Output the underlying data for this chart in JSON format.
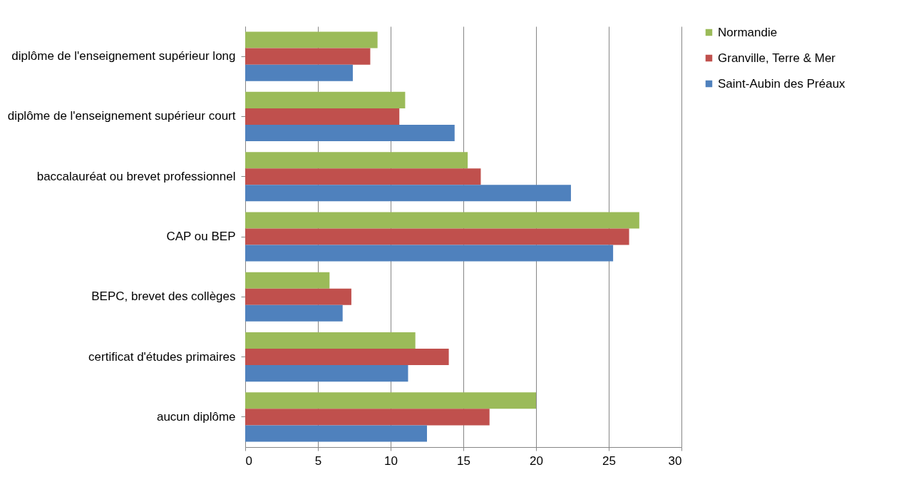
{
  "chart_data": {
    "type": "bar",
    "orientation": "horizontal",
    "categories": [
      "diplôme de l'enseignement supérieur long",
      "diplôme de l'enseignement supérieur court",
      "baccalauréat ou brevet professionnel",
      "CAP ou BEP",
      "BEPC, brevet des collèges",
      "certificat d'études primaires",
      "aucun diplôme"
    ],
    "series": [
      {
        "name": "Normandie",
        "color": "#9bbb59",
        "values": [
          9.1,
          11.0,
          15.3,
          27.1,
          5.8,
          11.7,
          20.0
        ]
      },
      {
        "name": "Granville, Terre & Mer",
        "color": "#c0504d",
        "values": [
          8.6,
          10.6,
          16.2,
          26.4,
          7.3,
          14.0,
          16.8
        ]
      },
      {
        "name": "Saint-Aubin des Préaux",
        "color": "#4f81bd",
        "values": [
          7.4,
          14.4,
          22.4,
          25.3,
          6.7,
          11.2,
          12.5
        ]
      }
    ],
    "xlim": [
      0,
      30
    ],
    "xticks": [
      0,
      5,
      10,
      15,
      20,
      25,
      30
    ],
    "grid": "x",
    "legend": "right"
  }
}
